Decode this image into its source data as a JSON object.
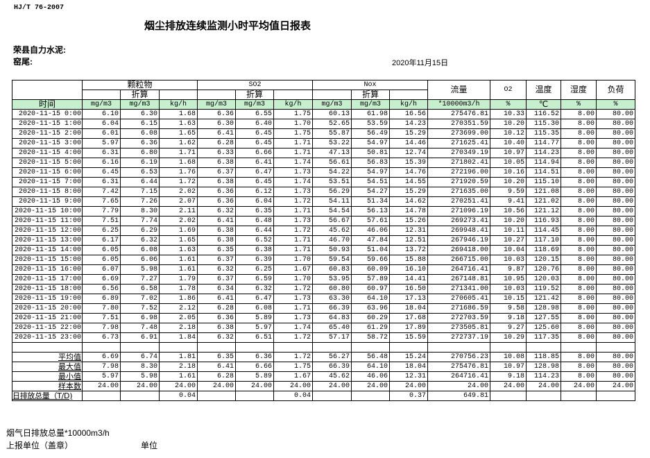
{
  "header": {
    "standard": "HJ/T  76-2007",
    "title": "烟尘排放连续监测小时平均值日报表",
    "company": "荣县自力水泥:",
    "kiln": "窑尾:",
    "date": "2020年11月15日"
  },
  "table": {
    "groups": {
      "particulate": "颗粒物",
      "so2": "SO2",
      "nox": "Nox",
      "flow": "流量",
      "o2": "O2",
      "temperature": "温度",
      "humidity": "湿度",
      "load": "负荷"
    },
    "converted_label": "折算",
    "units": [
      "时间",
      "mg/m3",
      "mg/m3",
      "kg/h",
      "mg/m3",
      "mg/m3",
      "kg/h",
      "mg/m3",
      "mg/m3",
      "kg/h",
      "*10000m3/h",
      "%",
      "℃",
      "%",
      "%"
    ],
    "rows": [
      [
        "2020-11-15 0:00",
        "6.10",
        "6.30",
        "1.68",
        "6.36",
        "6.55",
        "1.75",
        "60.13",
        "61.98",
        "16.56",
        "275476.81",
        "10.33",
        "116.52",
        "8.00",
        "80.00"
      ],
      [
        "2020-11-15 1:00",
        "6.04",
        "6.15",
        "1.63",
        "6.30",
        "6.40",
        "1.70",
        "52.65",
        "53.59",
        "14.23",
        "270351.59",
        "10.20",
        "115.30",
        "8.00",
        "80.00"
      ],
      [
        "2020-11-15 2:00",
        "6.01",
        "6.08",
        "1.65",
        "6.41",
        "6.45",
        "1.75",
        "55.87",
        "56.49",
        "15.29",
        "273699.00",
        "10.12",
        "115.35",
        "8.00",
        "80.00"
      ],
      [
        "2020-11-15 3:00",
        "5.97",
        "6.36",
        "1.62",
        "6.28",
        "6.45",
        "1.71",
        "53.22",
        "54.97",
        "14.46",
        "271625.41",
        "10.40",
        "114.77",
        "8.00",
        "80.00"
      ],
      [
        "2020-11-15 4:00",
        "6.31",
        "6.80",
        "1.71",
        "6.33",
        "6.66",
        "1.71",
        "47.13",
        "50.81",
        "12.74",
        "270349.19",
        "10.97",
        "114.23",
        "8.00",
        "80.00"
      ],
      [
        "2020-11-15 5:00",
        "6.16",
        "6.19",
        "1.68",
        "6.38",
        "6.41",
        "1.74",
        "56.61",
        "56.83",
        "15.39",
        "271802.41",
        "10.05",
        "114.94",
        "8.00",
        "80.00"
      ],
      [
        "2020-11-15 6:00",
        "6.45",
        "6.53",
        "1.76",
        "6.37",
        "6.47",
        "1.73",
        "54.22",
        "54.97",
        "14.76",
        "272196.00",
        "10.16",
        "114.51",
        "8.00",
        "80.00"
      ],
      [
        "2020-11-15 7:00",
        "6.31",
        "6.44",
        "1.72",
        "6.38",
        "6.45",
        "1.74",
        "53.51",
        "54.51",
        "14.55",
        "271920.59",
        "10.20",
        "115.10",
        "8.00",
        "80.00"
      ],
      [
        "2020-11-15 8:00",
        "7.42",
        "7.15",
        "2.02",
        "6.36",
        "6.12",
        "1.73",
        "56.29",
        "54.27",
        "15.29",
        "271635.00",
        "9.59",
        "121.08",
        "8.00",
        "80.00"
      ],
      [
        "2020-11-15 9:00",
        "7.65",
        "7.26",
        "2.07",
        "6.36",
        "6.04",
        "1.72",
        "54.11",
        "51.34",
        "14.62",
        "270251.41",
        "9.41",
        "121.02",
        "8.00",
        "80.00"
      ],
      [
        "2020-11-15 10:00",
        "7.79",
        "8.30",
        "2.11",
        "6.32",
        "6.35",
        "1.71",
        "54.54",
        "56.13",
        "14.78",
        "271096.19",
        "10.56",
        "121.12",
        "8.00",
        "80.00"
      ],
      [
        "2020-11-15 11:00",
        "7.51",
        "7.74",
        "2.02",
        "6.41",
        "6.48",
        "1.73",
        "56.67",
        "57.61",
        "15.26",
        "269273.41",
        "10.20",
        "116.93",
        "8.00",
        "80.00"
      ],
      [
        "2020-11-15 12:00",
        "6.25",
        "6.29",
        "1.69",
        "6.38",
        "6.44",
        "1.72",
        "45.62",
        "46.06",
        "12.31",
        "269948.41",
        "10.11",
        "114.45",
        "8.00",
        "80.00"
      ],
      [
        "2020-11-15 13:00",
        "6.17",
        "6.32",
        "1.65",
        "6.38",
        "6.52",
        "1.71",
        "46.70",
        "47.84",
        "12.51",
        "267946.19",
        "10.27",
        "117.10",
        "8.00",
        "80.00"
      ],
      [
        "2020-11-15 14:00",
        "6.05",
        "6.08",
        "1.63",
        "6.35",
        "6.38",
        "1.71",
        "50.93",
        "51.04",
        "13.72",
        "269418.00",
        "10.04",
        "118.69",
        "8.00",
        "80.00"
      ],
      [
        "2020-11-15 15:00",
        "6.05",
        "6.06",
        "1.61",
        "6.37",
        "6.39",
        "1.70",
        "59.54",
        "59.66",
        "15.88",
        "266715.00",
        "10.03",
        "120.15",
        "8.00",
        "80.00"
      ],
      [
        "2020-11-15 16:00",
        "6.07",
        "5.98",
        "1.61",
        "6.32",
        "6.25",
        "1.67",
        "60.83",
        "60.09",
        "16.10",
        "264716.41",
        "9.87",
        "120.76",
        "8.00",
        "80.00"
      ],
      [
        "2020-11-15 17:00",
        "6.69",
        "7.27",
        "1.79",
        "6.37",
        "6.59",
        "1.70",
        "53.95",
        "57.89",
        "14.41",
        "267148.81",
        "10.95",
        "120.03",
        "8.00",
        "80.00"
      ],
      [
        "2020-11-15 18:00",
        "6.56",
        "6.58",
        "1.78",
        "6.34",
        "6.32",
        "1.72",
        "60.80",
        "60.97",
        "16.50",
        "271341.00",
        "10.03",
        "119.52",
        "8.00",
        "80.00"
      ],
      [
        "2020-11-15 19:00",
        "6.89",
        "7.02",
        "1.86",
        "6.41",
        "6.47",
        "1.73",
        "63.30",
        "64.10",
        "17.13",
        "270605.41",
        "10.15",
        "121.42",
        "8.00",
        "80.00"
      ],
      [
        "2020-11-15 20:00",
        "7.80",
        "7.52",
        "2.12",
        "6.28",
        "6.08",
        "1.71",
        "66.39",
        "63.96",
        "18.04",
        "271686.59",
        "9.58",
        "128.98",
        "8.00",
        "80.00"
      ],
      [
        "2020-11-15 21:00",
        "7.51",
        "6.98",
        "2.05",
        "6.36",
        "5.89",
        "1.73",
        "64.83",
        "60.29",
        "17.68",
        "272703.59",
        "9.18",
        "127.55",
        "8.00",
        "80.00"
      ],
      [
        "2020-11-15 22:00",
        "7.98",
        "7.48",
        "2.18",
        "6.38",
        "5.97",
        "1.74",
        "65.40",
        "61.29",
        "17.89",
        "273505.81",
        "9.27",
        "125.60",
        "8.00",
        "80.00"
      ],
      [
        "2020-11-15 23:00",
        "6.73",
        "6.91",
        "1.84",
        "6.32",
        "6.51",
        "1.72",
        "57.17",
        "58.72",
        "15.59",
        "272737.19",
        "10.29",
        "117.35",
        "8.00",
        "80.00"
      ]
    ],
    "summary": [
      [
        "平均值",
        "6.69",
        "6.74",
        "1.81",
        "6.35",
        "6.36",
        "1.72",
        "56.27",
        "56.48",
        "15.24",
        "270756.23",
        "10.08",
        "118.85",
        "8.00",
        "80.00"
      ],
      [
        "最大值",
        "7.98",
        "8.30",
        "2.18",
        "6.41",
        "6.66",
        "1.75",
        "66.39",
        "64.10",
        "18.04",
        "275476.81",
        "10.97",
        "128.98",
        "8.00",
        "80.00"
      ],
      [
        "最小值",
        "5.97",
        "5.98",
        "1.61",
        "6.28",
        "5.89",
        "1.67",
        "45.62",
        "46.06",
        "12.31",
        "264716.41",
        "9.18",
        "114.23",
        "8.00",
        "80.00"
      ],
      [
        "样本数",
        "24.00",
        "24.00",
        "24.00",
        "24.00",
        "24.00",
        "24.00",
        "24.00",
        "24.00",
        "24.00",
        "24.00",
        "24.00",
        "24.00",
        "24.00",
        "24.00"
      ],
      [
        "日排放总量（T/D)",
        "",
        "",
        "0.04",
        "",
        "",
        "0.04",
        "",
        "",
        "0.37",
        "649.81",
        "",
        "",
        "",
        ""
      ]
    ]
  },
  "footer": {
    "flue_gas_total": "烟气日排放总量*10000m3/h",
    "reporting_unit": "上报单位（盖章）",
    "unit": "单位"
  },
  "colors": {
    "header_green": "#c6efce"
  }
}
